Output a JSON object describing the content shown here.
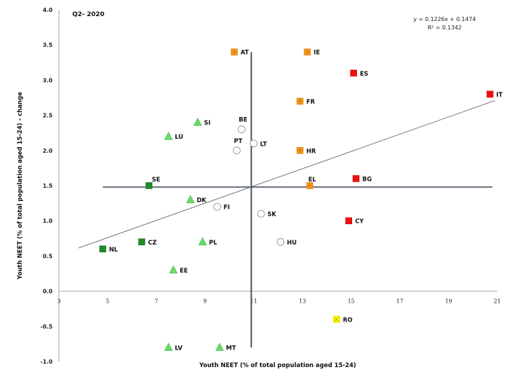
{
  "chart_data": {
    "type": "scatter",
    "title": "Q2- 2020",
    "xlabel": "Youth NEET (% of total population aged 15-24)",
    "ylabel": "Youth NEET (% of total population aged 15-24) - change",
    "xlim": [
      3,
      21
    ],
    "ylim": [
      -1.0,
      4.0
    ],
    "x_ticks": [
      3,
      5,
      7,
      9,
      11,
      13,
      15,
      17,
      19,
      21
    ],
    "y_ticks": [
      "4.0",
      "3.5",
      "3.0",
      "2.5",
      "2.0",
      "1.5",
      "1.0",
      "0.5",
      "0.0",
      "-0.5",
      "-1.0"
    ],
    "grid": false,
    "trendline": {
      "equation": "y = 0.1226x + 0.1474",
      "r_squared": "R² = 0.1342",
      "slope": 0.1226,
      "intercept": 0.1474,
      "x_range": [
        3.8,
        20.9
      ]
    },
    "quadrant_lines": {
      "vertical_x": 10.9,
      "vertical_y_range": [
        -0.8,
        3.4
      ],
      "horizontal_y": 1.48,
      "horizontal_x_range": [
        4.8,
        20.8
      ]
    },
    "marker_styles": {
      "orange-square": {
        "fill": "#f59a23",
        "stroke": "#d97a00"
      },
      "red-square": {
        "fill": "#ee1111",
        "stroke": "#cc0000"
      },
      "dark-green-square": {
        "fill": "#1e8a2a",
        "stroke": "#156a1f"
      },
      "light-green-triangle": {
        "fill": "#66dd66",
        "stroke": "#3fae3f"
      },
      "white-circle": {
        "fill": "#ffffff",
        "stroke": "#888888"
      },
      "yellow-x": {
        "fill": "#f5f500",
        "stroke": "#c8c800"
      }
    },
    "points": [
      {
        "label": "AT",
        "x": 10.2,
        "y": 3.4,
        "marker": "orange-square"
      },
      {
        "label": "IE",
        "x": 13.2,
        "y": 3.4,
        "marker": "orange-square"
      },
      {
        "label": "ES",
        "x": 15.1,
        "y": 3.1,
        "marker": "red-square"
      },
      {
        "label": "IT",
        "x": 20.7,
        "y": 2.8,
        "marker": "red-square"
      },
      {
        "label": "FR",
        "x": 12.9,
        "y": 2.7,
        "marker": "orange-square"
      },
      {
        "label": "SI",
        "x": 8.7,
        "y": 2.4,
        "marker": "light-green-triangle"
      },
      {
        "label": "BE",
        "x": 10.5,
        "y": 2.3,
        "marker": "white-circle"
      },
      {
        "label": "LU",
        "x": 7.5,
        "y": 2.2,
        "marker": "light-green-triangle"
      },
      {
        "label": "LT",
        "x": 11.0,
        "y": 2.1,
        "marker": "white-circle"
      },
      {
        "label": "PT",
        "x": 10.3,
        "y": 2.0,
        "marker": "white-circle"
      },
      {
        "label": "HR",
        "x": 12.9,
        "y": 2.0,
        "marker": "orange-square"
      },
      {
        "label": "SE",
        "x": 6.7,
        "y": 1.5,
        "marker": "dark-green-square"
      },
      {
        "label": "EL",
        "x": 13.3,
        "y": 1.5,
        "marker": "orange-square"
      },
      {
        "label": "BG",
        "x": 15.2,
        "y": 1.6,
        "marker": "red-square"
      },
      {
        "label": "DK",
        "x": 8.4,
        "y": 1.3,
        "marker": "light-green-triangle"
      },
      {
        "label": "FI",
        "x": 9.5,
        "y": 1.2,
        "marker": "white-circle"
      },
      {
        "label": "SK",
        "x": 11.3,
        "y": 1.1,
        "marker": "white-circle"
      },
      {
        "label": "CY",
        "x": 14.9,
        "y": 1.0,
        "marker": "red-square"
      },
      {
        "label": "CZ",
        "x": 6.4,
        "y": 0.7,
        "marker": "dark-green-square"
      },
      {
        "label": "PL",
        "x": 8.9,
        "y": 0.7,
        "marker": "light-green-triangle"
      },
      {
        "label": "HU",
        "x": 12.1,
        "y": 0.7,
        "marker": "white-circle"
      },
      {
        "label": "NL",
        "x": 4.8,
        "y": 0.6,
        "marker": "dark-green-square"
      },
      {
        "label": "EE",
        "x": 7.7,
        "y": 0.3,
        "marker": "light-green-triangle"
      },
      {
        "label": "RO",
        "x": 14.4,
        "y": -0.4,
        "marker": "yellow-x"
      },
      {
        "label": "LV",
        "x": 7.5,
        "y": -0.8,
        "marker": "light-green-triangle"
      },
      {
        "label": "MT",
        "x": 9.6,
        "y": -0.8,
        "marker": "light-green-triangle"
      }
    ]
  }
}
